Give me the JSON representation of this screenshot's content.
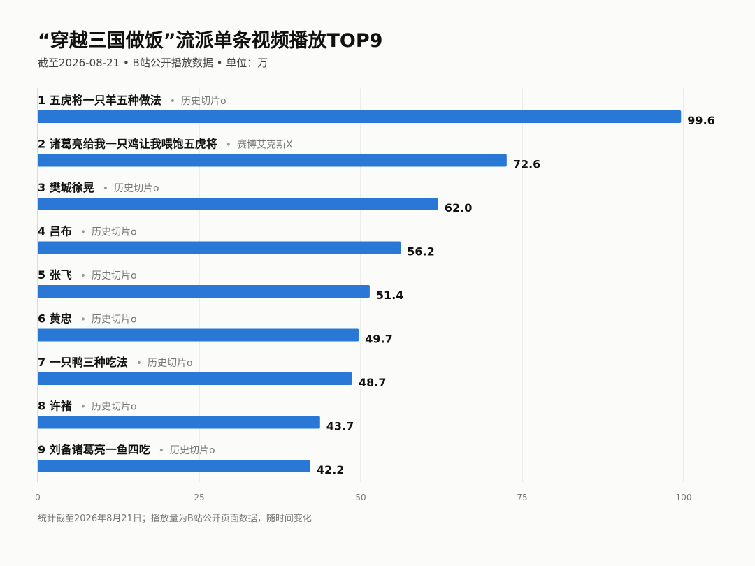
{
  "title": "“穿越三国做饭”流派单条视频播放TOP9",
  "subtitle": "截至2026-08-21 • B站公开播放数据 • 单位：万",
  "footnote": "统计截至2026年8月21日；播放量为B站公开页面数据，随时间变化",
  "chart_data": {
    "type": "bar",
    "orientation": "horizontal",
    "title": "“穿越三国做饭”流派单条视频播放TOP9",
    "xlim": [
      0,
      100
    ],
    "xticks": [
      0,
      25,
      50,
      75,
      100
    ],
    "grid": true,
    "bar_color": "#2a78d6",
    "rows": [
      {
        "rank": "1",
        "label": "五虎将一只羊五种做法",
        "source": "历史切片o",
        "value": 99.6,
        "value_text": "99.6"
      },
      {
        "rank": "2",
        "label": "诸葛亮给我一只鸡让我喂饱五虎将",
        "source": "赛博艾克斯X",
        "value": 72.6,
        "value_text": "72.6"
      },
      {
        "rank": "3",
        "label": "樊城徐晃",
        "source": "历史切片o",
        "value": 62.0,
        "value_text": "62.0"
      },
      {
        "rank": "4",
        "label": "吕布",
        "source": "历史切片o",
        "value": 56.2,
        "value_text": "56.2"
      },
      {
        "rank": "5",
        "label": "张飞",
        "source": "历史切片o",
        "value": 51.4,
        "value_text": "51.4"
      },
      {
        "rank": "6",
        "label": "黄忠",
        "source": "历史切片o",
        "value": 49.7,
        "value_text": "49.7"
      },
      {
        "rank": "7",
        "label": "一只鸭三种吃法",
        "source": "历史切片o",
        "value": 48.7,
        "value_text": "48.7"
      },
      {
        "rank": "8",
        "label": "许褚",
        "source": "历史切片o",
        "value": 43.7,
        "value_text": "43.7"
      },
      {
        "rank": "9",
        "label": "刘备诸葛亮一鱼四吃",
        "source": "历史切片o",
        "value": 42.2,
        "value_text": "42.2"
      }
    ]
  }
}
